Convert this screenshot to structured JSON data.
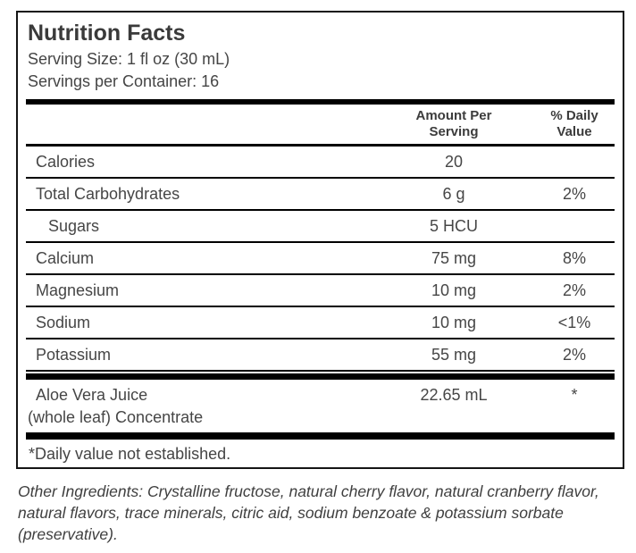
{
  "label": {
    "title": "Nutrition Facts",
    "serving_size": "Serving Size: 1 fl oz (30 mL)",
    "servings_per_container": "Servings per Container: 16",
    "columns": {
      "amount": "Amount Per Serving",
      "daily": "% Daily Value"
    },
    "rows": [
      {
        "name": "Calories",
        "amount": "20",
        "daily": ""
      },
      {
        "name": "Total Carbohydrates",
        "amount": "6 g",
        "daily": "2%"
      },
      {
        "name": "Sugars",
        "amount": "5 HCU",
        "daily": ""
      },
      {
        "name": "Calcium",
        "amount": "75 mg",
        "daily": "8%"
      },
      {
        "name": "Magnesium",
        "amount": "10 mg",
        "daily": "2%"
      },
      {
        "name": "Sodium",
        "amount": "10 mg",
        "daily": "<1%"
      },
      {
        "name": "Potassium",
        "amount": "55 mg",
        "daily": "2%"
      }
    ],
    "aloe_row": {
      "name_line1": "Aloe Vera Juice",
      "name_line2": "(whole leaf) Concentrate",
      "amount": "22.65 mL",
      "daily": "*"
    },
    "footnote": "*Daily value not established."
  },
  "other_ingredients": "Other Ingredients: Crystalline fructose, natural cherry flavor, natural cranberry flavor, natural flavors, trace minerals, citric aid, sodium benzoate & potassium sorbate (preservative).",
  "colors": {
    "background": "#ffffff",
    "text": "#3f3f3f",
    "rule": "#000000"
  }
}
